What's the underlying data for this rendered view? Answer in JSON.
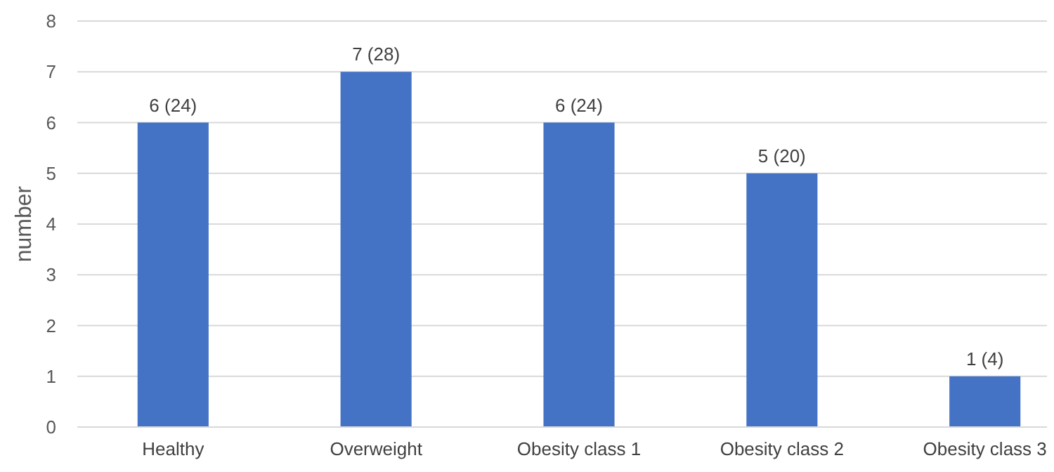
{
  "chart_data": {
    "type": "bar",
    "ylabel": "number",
    "categories": [
      "Healthy",
      "Overweight",
      "Obesity class 1",
      "Obesity class 2",
      "Obesity class 3"
    ],
    "values": [
      6,
      7,
      6,
      5,
      1
    ],
    "value_labels": [
      "6 (24)",
      "7 (28)",
      "6 (24)",
      "5 (20)",
      "1 (4)"
    ],
    "color": "#4472c4",
    "ylim": [
      0,
      8
    ],
    "yticks": [
      0,
      1,
      2,
      3,
      4,
      5,
      6,
      7,
      8
    ],
    "grid": "y"
  }
}
